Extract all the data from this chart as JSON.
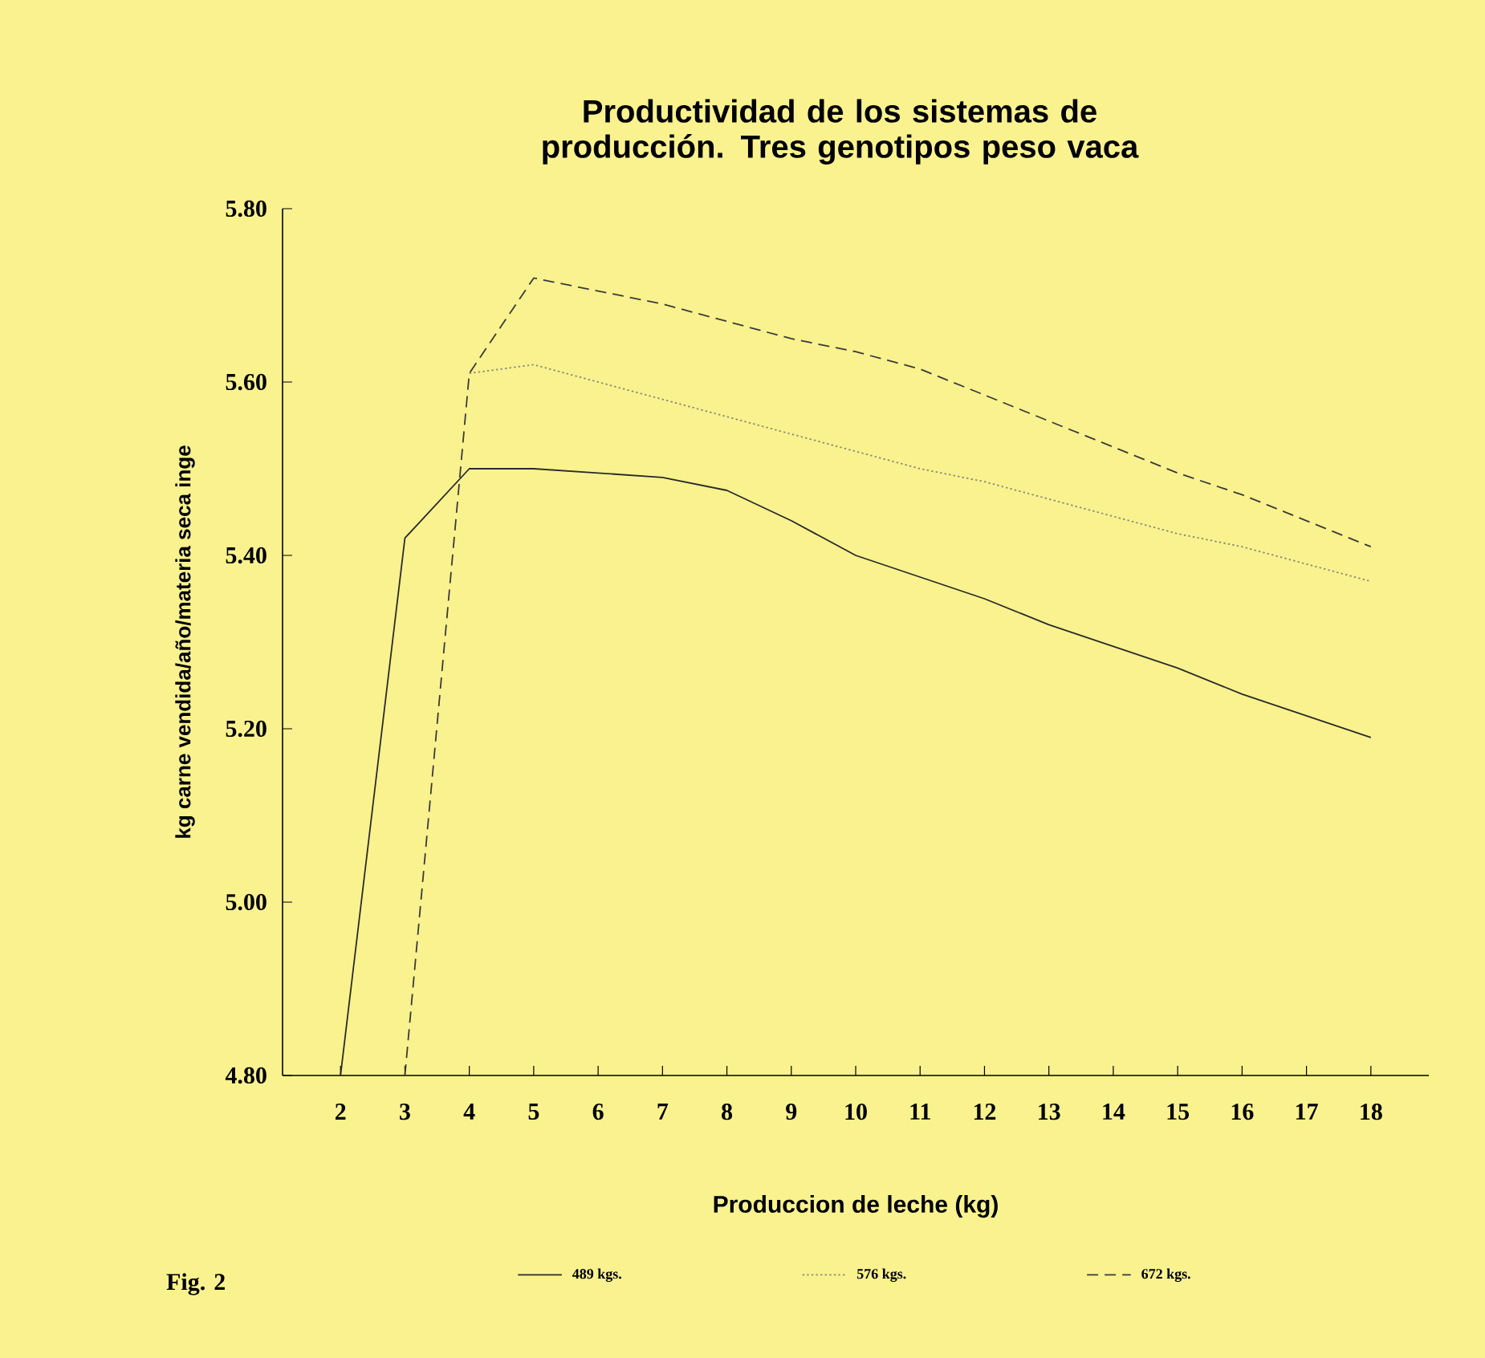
{
  "chart_data": {
    "type": "line",
    "title": "Productividad de los sistemas de producción. Tres genotipos peso vaca",
    "xlabel": "Produccion de leche (kg)",
    "ylabel": "kg carne vendida/año/materia seca inge",
    "annotations": [
      "Fig. 2"
    ],
    "x": [
      2,
      3,
      4,
      5,
      6,
      7,
      8,
      9,
      10,
      11,
      12,
      13,
      14,
      15,
      16,
      17,
      18
    ],
    "series": [
      {
        "name": "489 kgs.",
        "color": "#2a2a2a",
        "line_style": "solid",
        "values": [
          4.8,
          5.42,
          5.5,
          5.5,
          5.495,
          5.49,
          5.475,
          5.44,
          5.4,
          5.375,
          5.35,
          5.32,
          5.295,
          5.27,
          5.24,
          5.215,
          5.19
        ]
      },
      {
        "name": "576 kgs.",
        "color": "#8a8a7a",
        "line_style": "dotted",
        "values": [
          null,
          null,
          5.61,
          5.62,
          5.6,
          5.58,
          5.56,
          5.54,
          5.52,
          5.5,
          5.485,
          5.465,
          5.445,
          5.425,
          5.41,
          5.39,
          5.37
        ]
      },
      {
        "name": "672 kgs.",
        "color": "#3a3a3a",
        "line_style": "dashed",
        "values": [
          null,
          4.8,
          5.61,
          5.72,
          5.705,
          5.69,
          5.67,
          5.65,
          5.635,
          5.615,
          5.585,
          5.555,
          5.525,
          5.495,
          5.47,
          5.44,
          5.41
        ]
      }
    ],
    "xlim": [
      1.1,
      18.9
    ],
    "ylim": [
      4.8,
      5.8
    ],
    "xticks": [
      2,
      3,
      4,
      5,
      6,
      7,
      8,
      9,
      10,
      11,
      12,
      13,
      14,
      15,
      16,
      17,
      18
    ],
    "yticks": [
      {
        "value": 4.8,
        "label": "4.80"
      },
      {
        "value": 5.0,
        "label": "5.00"
      },
      {
        "value": 5.2,
        "label": "5.20"
      },
      {
        "value": 5.4,
        "label": "5.40"
      },
      {
        "value": 5.6,
        "label": "5.60"
      },
      {
        "value": 5.8,
        "label": "5.80"
      }
    ],
    "grid": false,
    "legend": "bottom",
    "marker": "none"
  }
}
